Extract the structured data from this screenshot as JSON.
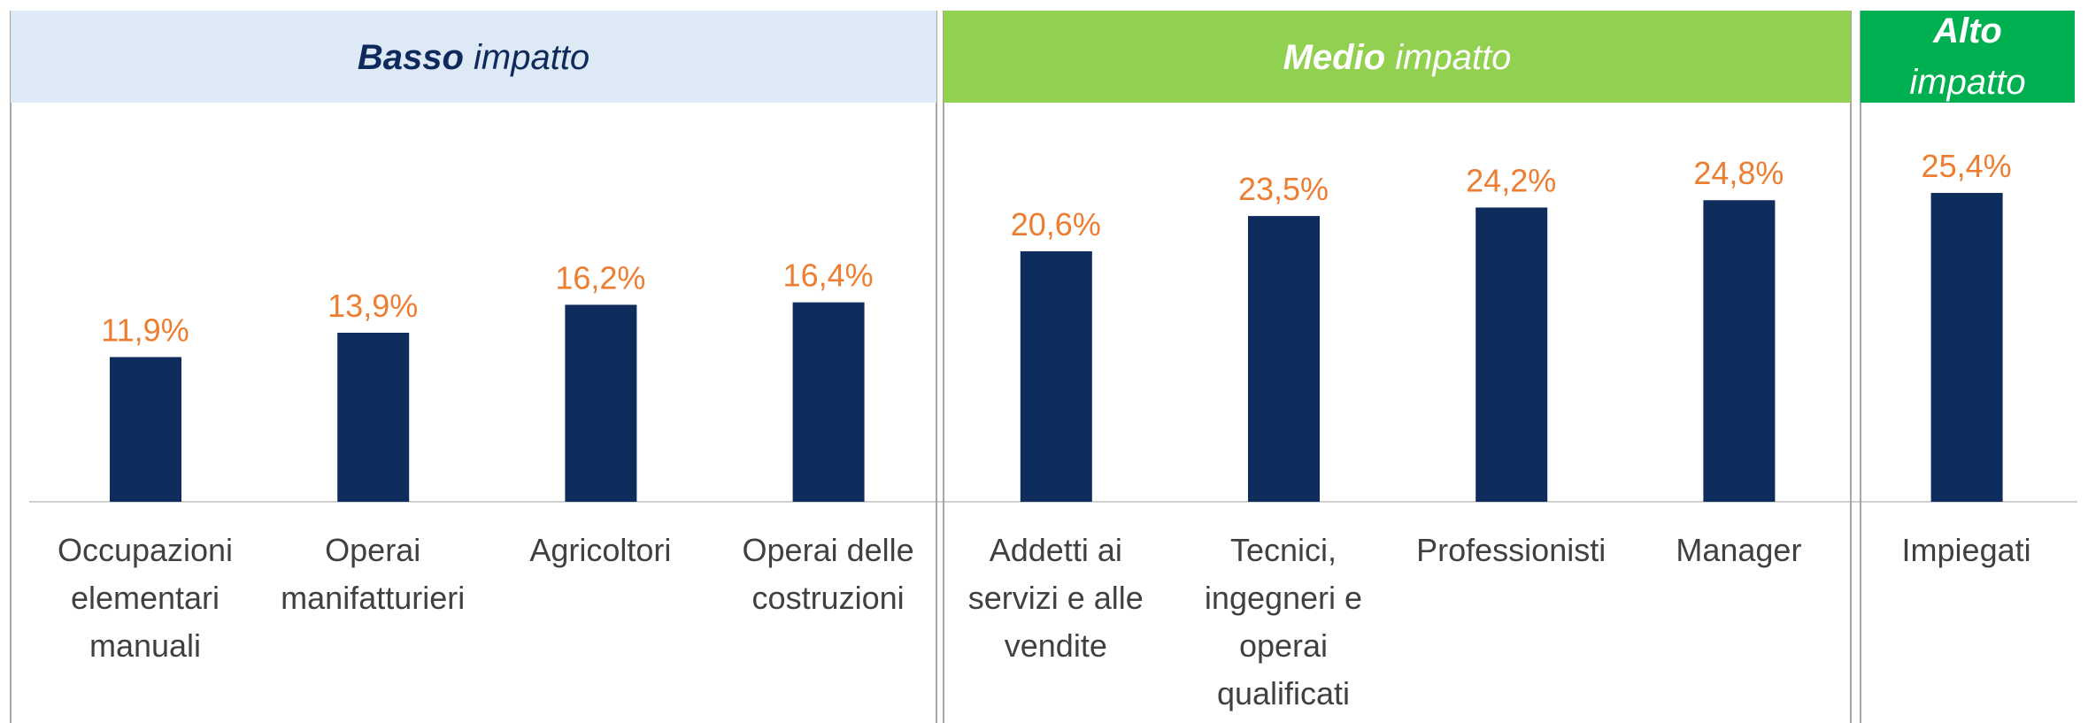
{
  "chart_data": [
    {
      "type": "bar",
      "title_emphasis": "Basso",
      "title": "impatto",
      "header_color": "#dde9f5",
      "title_color": "#0e2a5c",
      "categories": [
        "Occupazioni\nelementari\nmanuali",
        "Operai\nmanifatturieri",
        "Agricoltori",
        "Operai delle\ncostruzioni"
      ],
      "values": [
        11.9,
        13.9,
        16.2,
        16.4
      ],
      "value_labels": [
        "11,9%",
        "13,9%",
        "16,2%",
        "16,4%"
      ],
      "color": "#0f2d5c",
      "label_color": "#ed7d31"
    },
    {
      "type": "bar",
      "title_emphasis": "Medio",
      "title": "impatto",
      "header_color": "#92d050",
      "title_color": "#ffffff",
      "categories": [
        "Addetti ai\nservizi e alle\nvendite",
        "Tecnici,\ningegneri e\noperai\nqualificati",
        "Professionisti",
        "Manager"
      ],
      "values": [
        20.6,
        23.5,
        24.2,
        24.8
      ],
      "value_labels": [
        "20,6%",
        "23,5%",
        "24,2%",
        "24,8%"
      ],
      "color": "#0f2d5c",
      "label_color": "#ed7d31"
    },
    {
      "type": "bar",
      "title_emphasis": "Alto",
      "title": "impatto",
      "header_color": "#00b050",
      "title_color": "#ffffff",
      "categories": [
        "Impiegati"
      ],
      "values": [
        25.4
      ],
      "value_labels": [
        "25,4%"
      ],
      "color": "#0f2d5c",
      "label_color": "#ed7d31"
    }
  ]
}
